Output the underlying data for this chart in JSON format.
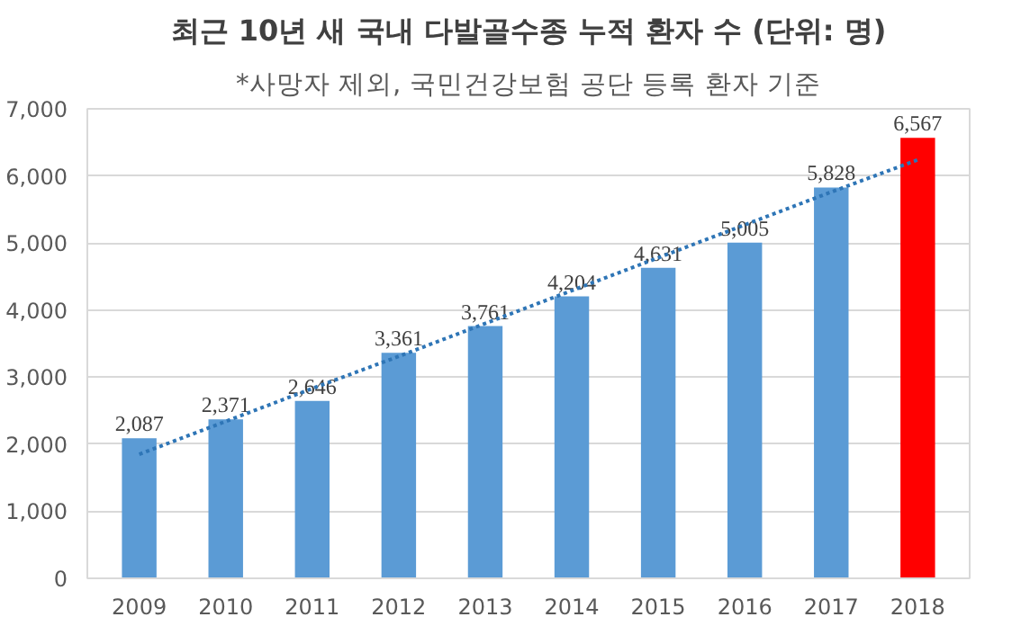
{
  "chart_data": {
    "type": "bar",
    "title": "최근 10년 새 국내 다발골수종 누적 환자 수 (단위: 명)",
    "subtitle": "*사망자 제외, 국민건강보험 공단 등록 환자 기준",
    "categories": [
      "2009",
      "2010",
      "2011",
      "2012",
      "2013",
      "2014",
      "2015",
      "2016",
      "2017",
      "2018"
    ],
    "series": [
      {
        "colors": [
          "#5b9bd5",
          "#5b9bd5",
          "#5b9bd5",
          "#5b9bd5",
          "#5b9bd5",
          "#5b9bd5",
          "#5b9bd5",
          "#5b9bd5",
          "#5b9bd5",
          "#ff0000"
        ],
        "values": [
          2087,
          2371,
          2646,
          3361,
          3761,
          4204,
          4631,
          5005,
          5828,
          6567
        ],
        "value_labels": [
          "2,087",
          "2,371",
          "2,646",
          "3,361",
          "3,761",
          "4,204",
          "4,631",
          "5,005",
          "5,828",
          "6,567"
        ]
      },
      {
        "type": "line",
        "color": "#2e75b6",
        "values": [
          1850,
          2340,
          2830,
          3310,
          3800,
          4290,
          4780,
          5270,
          5760,
          6240
        ],
        "line_style": "dotted",
        "marker": "none"
      }
    ],
    "ylim": [
      0,
      7000
    ],
    "yticks": [
      {
        "value": 0,
        "label": "0"
      },
      {
        "value": 1000,
        "label": "1,000"
      },
      {
        "value": 2000,
        "label": "2,000"
      },
      {
        "value": 3000,
        "label": "3,000"
      },
      {
        "value": 4000,
        "label": "4,000"
      },
      {
        "value": 5000,
        "label": "5,000"
      },
      {
        "value": 6000,
        "label": "6,000"
      },
      {
        "value": 7000,
        "label": "7,000"
      }
    ],
    "grid": "y"
  }
}
